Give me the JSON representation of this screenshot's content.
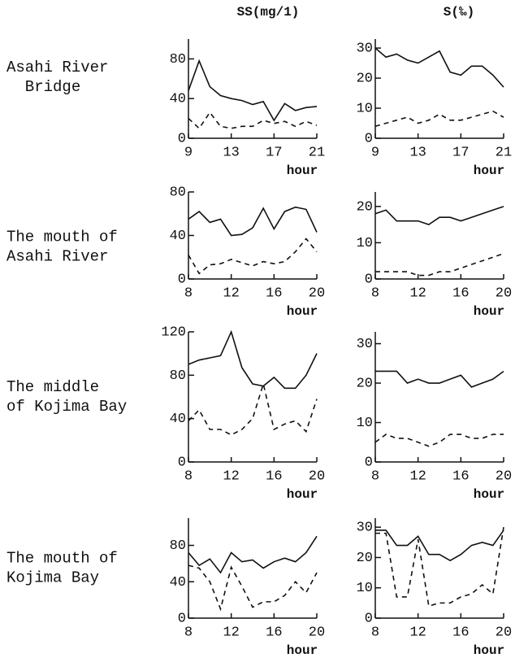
{
  "column_headers": [
    "SS(mg/1)",
    "S(‰)"
  ],
  "row_labels": [
    [
      "Asahi River",
      "  Bridge"
    ],
    [
      "The mouth of",
      "Asahi River"
    ],
    [
      "The middle",
      "of Kojima Bay"
    ],
    [
      "The mouth of",
      "Kojima Bay"
    ]
  ],
  "chart_data": [
    {
      "type": "line",
      "xlabel": "hour",
      "x": [
        9,
        10,
        11,
        12,
        13,
        14,
        15,
        16,
        17,
        18,
        19,
        20,
        21
      ],
      "xlim": [
        9,
        21
      ],
      "xticks": [
        9,
        13,
        17,
        21
      ],
      "ylim": [
        0,
        100
      ],
      "yticks": [
        0,
        40,
        80
      ],
      "series": [
        {
          "color": "#111",
          "dash": false,
          "values": [
            48,
            78,
            52,
            43,
            40,
            38,
            34,
            37,
            18,
            35,
            28,
            31,
            32
          ]
        },
        {
          "color": "#111",
          "dash": true,
          "values": [
            20,
            10,
            26,
            12,
            10,
            12,
            12,
            18,
            15,
            17,
            12,
            17,
            13
          ]
        }
      ]
    },
    {
      "type": "line",
      "xlabel": "hour",
      "x": [
        9,
        10,
        11,
        12,
        13,
        14,
        15,
        16,
        17,
        18,
        19,
        20,
        21
      ],
      "xlim": [
        9,
        21
      ],
      "xticks": [
        9,
        13,
        17,
        21
      ],
      "ylim": [
        0,
        33
      ],
      "yticks": [
        0,
        10,
        20,
        30
      ],
      "series": [
        {
          "color": "#111",
          "dash": false,
          "values": [
            30,
            27,
            28,
            26,
            25,
            27,
            29,
            22,
            21,
            24,
            24,
            21,
            17
          ]
        },
        {
          "color": "#111",
          "dash": true,
          "values": [
            4,
            5,
            6,
            7,
            5,
            6,
            8,
            6,
            6,
            7,
            8,
            9,
            7
          ]
        }
      ]
    },
    {
      "type": "line",
      "xlabel": "hour",
      "x": [
        8,
        9,
        10,
        11,
        12,
        13,
        14,
        15,
        16,
        17,
        18,
        19,
        20
      ],
      "xlim": [
        8,
        20
      ],
      "xticks": [
        8,
        12,
        16,
        20
      ],
      "ylim": [
        0,
        80
      ],
      "yticks": [
        0,
        40,
        80
      ],
      "series": [
        {
          "color": "#111",
          "dash": false,
          "values": [
            55,
            62,
            52,
            55,
            40,
            41,
            47,
            65,
            46,
            62,
            66,
            64,
            43
          ]
        },
        {
          "color": "#111",
          "dash": true,
          "values": [
            22,
            5,
            13,
            14,
            18,
            15,
            12,
            16,
            14,
            16,
            25,
            37,
            25
          ]
        }
      ]
    },
    {
      "type": "line",
      "xlabel": "hour",
      "x": [
        8,
        9,
        10,
        11,
        12,
        13,
        14,
        15,
        16,
        17,
        18,
        19,
        20
      ],
      "xlim": [
        8,
        20
      ],
      "xticks": [
        8,
        12,
        16,
        20
      ],
      "ylim": [
        0,
        24
      ],
      "yticks": [
        0,
        10,
        20
      ],
      "series": [
        {
          "color": "#111",
          "dash": false,
          "values": [
            18,
            19,
            16,
            16,
            16,
            15,
            17,
            17,
            16,
            17,
            18,
            19,
            20
          ]
        },
        {
          "color": "#111",
          "dash": true,
          "values": [
            2,
            2,
            2,
            2,
            1,
            1,
            2,
            2,
            3,
            4,
            5,
            6,
            7
          ]
        }
      ]
    },
    {
      "type": "line",
      "xlabel": "hour",
      "x": [
        8,
        9,
        10,
        11,
        12,
        13,
        14,
        15,
        16,
        17,
        18,
        19,
        20
      ],
      "xlim": [
        8,
        20
      ],
      "xticks": [
        8,
        12,
        16,
        20
      ],
      "ylim": [
        0,
        120
      ],
      "yticks": [
        0,
        40,
        80,
        120
      ],
      "series": [
        {
          "color": "#111",
          "dash": false,
          "values": [
            90,
            94,
            96,
            98,
            120,
            87,
            72,
            70,
            78,
            68,
            68,
            80,
            100
          ]
        },
        {
          "color": "#111",
          "dash": true,
          "values": [
            38,
            48,
            30,
            30,
            25,
            30,
            40,
            72,
            30,
            35,
            38,
            28,
            58
          ]
        }
      ]
    },
    {
      "type": "line",
      "xlabel": "hour",
      "x": [
        8,
        9,
        10,
        11,
        12,
        13,
        14,
        15,
        16,
        17,
        18,
        19,
        20
      ],
      "xlim": [
        8,
        20
      ],
      "xticks": [
        8,
        12,
        16,
        20
      ],
      "ylim": [
        0,
        33
      ],
      "yticks": [
        0,
        10,
        20,
        30
      ],
      "series": [
        {
          "color": "#111",
          "dash": false,
          "values": [
            23,
            23,
            23,
            20,
            21,
            20,
            20,
            21,
            22,
            19,
            20,
            21,
            23
          ]
        },
        {
          "color": "#111",
          "dash": true,
          "values": [
            5,
            7,
            6,
            6,
            5,
            4,
            5,
            7,
            7,
            6,
            6,
            7,
            7
          ]
        }
      ]
    },
    {
      "type": "line",
      "xlabel": "hour",
      "x": [
        8,
        9,
        10,
        11,
        12,
        13,
        14,
        15,
        16,
        17,
        18,
        19,
        20
      ],
      "xlim": [
        8,
        20
      ],
      "xticks": [
        8,
        12,
        16,
        20
      ],
      "ylim": [
        0,
        110
      ],
      "yticks": [
        0,
        40,
        80
      ],
      "series": [
        {
          "color": "#111",
          "dash": false,
          "values": [
            72,
            58,
            65,
            50,
            72,
            62,
            64,
            55,
            62,
            66,
            62,
            72,
            90
          ]
        },
        {
          "color": "#111",
          "dash": true,
          "values": [
            58,
            55,
            40,
            10,
            56,
            35,
            12,
            18,
            18,
            25,
            40,
            28,
            50
          ]
        }
      ]
    },
    {
      "type": "line",
      "xlabel": "hour",
      "x": [
        8,
        9,
        10,
        11,
        12,
        13,
        14,
        15,
        16,
        17,
        18,
        19,
        20
      ],
      "xlim": [
        8,
        20
      ],
      "xticks": [
        8,
        12,
        16,
        20
      ],
      "ylim": [
        0,
        33
      ],
      "yticks": [
        0,
        10,
        20,
        30
      ],
      "series": [
        {
          "color": "#111",
          "dash": false,
          "values": [
            29,
            29,
            24,
            24,
            27,
            21,
            21,
            19,
            21,
            24,
            25,
            24,
            29
          ]
        },
        {
          "color": "#111",
          "dash": true,
          "values": [
            28,
            28,
            7,
            7,
            26,
            4,
            5,
            5,
            7,
            8,
            11,
            8,
            30
          ]
        }
      ]
    }
  ]
}
